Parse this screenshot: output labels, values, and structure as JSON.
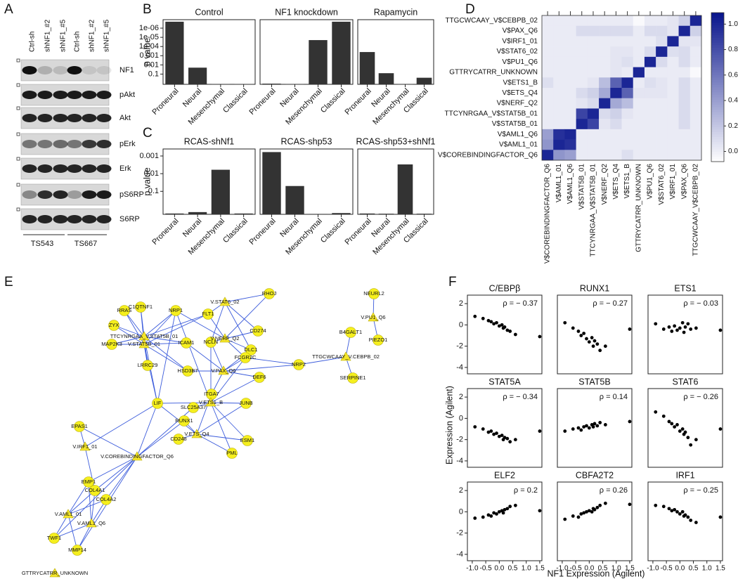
{
  "panel_letters": [
    "A",
    "B",
    "C",
    "D",
    "E",
    "F"
  ],
  "blot": {
    "lanes": [
      "Ctrl-sh",
      "shNF1_#2",
      "shNF1_#5",
      "Ctrl-sh",
      "shNF1_#2",
      "shNF1_#5"
    ],
    "proteins": [
      "NF1",
      "pAkt",
      "Akt",
      "pErk",
      "Erk",
      "pS6RP",
      "S6RP"
    ],
    "cell_lines": [
      "TS543",
      "TS667"
    ]
  },
  "chart_data": [
    {
      "type": "bar",
      "title": "Control",
      "ylabel": "p value",
      "log_scale": true,
      "color": "#333333",
      "categories": [
        "Proneural",
        "Neural",
        "Mesenchymal",
        "Classical"
      ],
      "values": [
        2e-07,
        0.02,
        1.2,
        1.2
      ],
      "ylim": [
        1.3,
        1.2e-07
      ],
      "yticks": [
        {
          "value": 1e-06,
          "label": "1e-06"
        },
        {
          "value": 1e-05,
          "label": "1e-05"
        },
        {
          "value": 0.0001,
          "label": "1e-04"
        },
        0.001,
        0.01,
        0.1
      ]
    },
    {
      "type": "bar",
      "title": "NF1 knockdown",
      "log_scale": true,
      "color": "#333333",
      "categories": [
        "Proneural",
        "Neural",
        "Mesenchymal",
        "Classical"
      ],
      "values": [
        1.1,
        1.25,
        2e-05,
        2e-07
      ],
      "ylim": [
        1.3,
        1.2e-07
      ]
    },
    {
      "type": "bar",
      "title": "Rapamycin",
      "log_scale": true,
      "color": "#333333",
      "categories": [
        "Proneural",
        "Neural",
        "Mesenchymal",
        "Classical"
      ],
      "values": [
        0.0004,
        0.08,
        1.25,
        0.25
      ],
      "ylim": [
        1.3,
        1.2e-07
      ]
    },
    {
      "type": "bar",
      "title": "RCAS-shNf1",
      "ylabel": "p value",
      "log_scale": true,
      "color": "#333333",
      "categories": [
        "Proneural",
        "Neural",
        "Mesenchymal",
        "Classical"
      ],
      "values": [
        1.8,
        1.5,
        0.006,
        1.8
      ],
      "ylim": [
        2,
        0.0004
      ],
      "yticks": [
        0.001,
        0.01,
        0.1
      ]
    },
    {
      "type": "bar",
      "title": "RCAS-shp53",
      "log_scale": true,
      "color": "#333333",
      "categories": [
        "Proneural",
        "Neural",
        "Mesenchymal",
        "Classical"
      ],
      "values": [
        0.0006,
        0.05,
        1.9,
        1.7
      ],
      "ylim": [
        2,
        0.0004
      ]
    },
    {
      "type": "bar",
      "title": "RCAS-shp53+shNf1",
      "log_scale": true,
      "color": "#333333",
      "categories": [
        "Proneural",
        "Neural",
        "Mesenchymal",
        "Classical"
      ],
      "values": [
        1.8,
        1.85,
        0.003,
        1.85
      ],
      "ylim": [
        2,
        0.0004
      ]
    },
    {
      "type": "heatmap",
      "color": "#08148c",
      "rows": [
        "TTGCWCAAY_V$CEBPB_02",
        "V$PAX_Q6",
        "V$IRF1_01",
        "V$STAT6_02",
        "V$PU1_Q6",
        "GTTRYCATRR_UNKNOWN",
        "V$ETS1_B",
        "V$ETS_Q4",
        "V$NERF_Q2",
        "TTCYNRGAA_V$STAT5B_01",
        "V$STAT5B_01",
        "V$AML1_Q6",
        "V$AML1_01",
        "V$COREBINDINGFACTOR_Q6"
      ],
      "columns": [
        "V$COREBINDINGFACTOR_Q6",
        "V$AML1_01",
        "V$AML1_Q6",
        "V$STAT5B_01",
        "TTCYNRGAA_V$STAT5B_01",
        "V$NERF_Q2",
        "V$ETS_Q4",
        "V$ETS1_B",
        "GTTRYCATRR_UNKNOWN",
        "V$PU1_Q6",
        "V$STAT6_02",
        "V$IRF1_01",
        "V$PAX_Q6",
        "TTGCWCAAY_V$CEBPB_02"
      ],
      "values": [
        [
          0.02,
          0.02,
          0.02,
          0.02,
          0.02,
          0.02,
          0.02,
          0.02,
          -0.05,
          0.02,
          0.02,
          0.05,
          0.15,
          1
        ],
        [
          0.02,
          0.02,
          0.02,
          0.1,
          0.1,
          0.1,
          0.1,
          0.1,
          0.02,
          0.1,
          0.1,
          0.05,
          1,
          0.15
        ],
        [
          0.02,
          0.02,
          0.02,
          0.02,
          0.02,
          0.02,
          0.02,
          0.02,
          0.02,
          0.02,
          0.08,
          1,
          0.05,
          0.05
        ],
        [
          0.02,
          0.02,
          0.02,
          0.02,
          0.02,
          0.02,
          0.05,
          0.05,
          0.02,
          0.1,
          1,
          0.08,
          0.1,
          0.02
        ],
        [
          0.02,
          0.02,
          0.02,
          0.02,
          0.02,
          0.02,
          0.05,
          0.08,
          0.02,
          1,
          0.1,
          0.02,
          0.1,
          0.02
        ],
        [
          0.02,
          0.02,
          0.02,
          0.02,
          0.02,
          0.02,
          0.05,
          0.02,
          1,
          0.02,
          0.02,
          0.02,
          0.02,
          -0.05
        ],
        [
          0.08,
          0.02,
          0.02,
          0.02,
          0.05,
          0.25,
          0.7,
          1,
          0.02,
          0.08,
          0.05,
          0.02,
          0.1,
          0.02
        ],
        [
          0.02,
          0.02,
          0.02,
          0.1,
          0.15,
          0.35,
          1,
          0.7,
          0.05,
          0.05,
          0.05,
          0.02,
          0.1,
          0.02
        ],
        [
          0.02,
          0.02,
          0.02,
          0.05,
          0.1,
          1,
          0.35,
          0.25,
          0.02,
          0.02,
          0.02,
          0.02,
          0.1,
          0.02
        ],
        [
          0.02,
          0.02,
          0.02,
          0.85,
          1,
          0.1,
          0.15,
          0.05,
          0.02,
          0.02,
          0.02,
          0.02,
          0.1,
          0.02
        ],
        [
          0.02,
          0.02,
          0.02,
          1,
          0.85,
          0.05,
          0.1,
          0.02,
          0.02,
          0.02,
          0.02,
          0.02,
          0.1,
          0.02
        ],
        [
          0.4,
          0.95,
          1,
          0.02,
          0.02,
          0.02,
          0.02,
          0.02,
          0.02,
          0.02,
          0.02,
          0.02,
          0.02,
          0.02
        ],
        [
          0.45,
          1,
          0.95,
          0.02,
          0.02,
          0.02,
          0.02,
          0.02,
          0.02,
          0.02,
          0.02,
          0.02,
          0.02,
          0.02
        ],
        [
          1,
          0.45,
          0.4,
          0.02,
          0.02,
          0.02,
          0.02,
          0.08,
          0.02,
          0.02,
          0.02,
          0.02,
          0.02,
          0.02
        ]
      ],
      "ylim": [
        -0.08,
        1.09
      ],
      "yticks": [
        {
          "value": 0,
          "label": "0.0"
        },
        0.2,
        0.4,
        0.6,
        0.8,
        {
          "value": 1,
          "label": "1.0"
        }
      ]
    },
    {
      "type": "scatter",
      "title": "C/EBPβ",
      "annotation": "ρ = − 0.37",
      "color": "#000000",
      "x": [
        -0.9,
        -0.6,
        -0.4,
        -0.3,
        -0.2,
        -0.1,
        0.0,
        0.1,
        0.15,
        0.2,
        0.3,
        0.4,
        0.6,
        1.5
      ],
      "y": [
        0.8,
        0.6,
        0.4,
        0.3,
        0.1,
        0.2,
        -0.1,
        0.0,
        -0.3,
        -0.2,
        -0.5,
        -0.6,
        -0.9,
        -1.1
      ],
      "xlim": [
        -1.18,
        1.58
      ],
      "ylim": [
        -4.6,
        2.8
      ],
      "yticks": [
        -4,
        -2,
        0,
        2
      ]
    },
    {
      "type": "scatter",
      "title": "RUNX1",
      "annotation": "ρ = − 0.27",
      "color": "#000000",
      "x": [
        -0.9,
        -0.6,
        -0.4,
        -0.3,
        -0.2,
        -0.1,
        0.0,
        0.1,
        0.15,
        0.2,
        0.3,
        0.4,
        0.6,
        1.5
      ],
      "y": [
        0.2,
        -0.3,
        -0.6,
        -1.0,
        -0.8,
        -1.3,
        -1.6,
        -1.2,
        -2.0,
        -1.5,
        -1.8,
        -2.4,
        -2.0,
        -0.4
      ],
      "xlim": [
        -1.18,
        1.58
      ],
      "ylim": [
        -4.6,
        2.8
      ]
    },
    {
      "type": "scatter",
      "title": "ETS1",
      "annotation": "ρ = − 0.03",
      "color": "#000000",
      "x": [
        -0.9,
        -0.6,
        -0.4,
        -0.3,
        -0.2,
        -0.1,
        0.0,
        0.1,
        0.15,
        0.2,
        0.3,
        0.4,
        0.6,
        1.5
      ],
      "y": [
        0.1,
        -0.4,
        -0.2,
        -0.6,
        -0.1,
        -0.5,
        -0.3,
        0.2,
        -0.7,
        -0.2,
        0.1,
        -0.4,
        -0.3,
        -0.5
      ],
      "xlim": [
        -1.18,
        1.58
      ],
      "ylim": [
        -4.6,
        2.8
      ]
    },
    {
      "type": "scatter",
      "title": "STAT5A",
      "annotation": "ρ = − 0.34",
      "color": "#000000",
      "x": [
        -0.9,
        -0.6,
        -0.4,
        -0.3,
        -0.2,
        -0.1,
        0.0,
        0.1,
        0.15,
        0.2,
        0.3,
        0.4,
        0.6,
        1.5
      ],
      "y": [
        -0.8,
        -1.0,
        -1.3,
        -1.2,
        -1.5,
        -1.4,
        -1.7,
        -1.6,
        -2.0,
        -1.8,
        -1.9,
        -2.2,
        -2.0,
        -1.2
      ],
      "xlim": [
        -1.18,
        1.58
      ],
      "ylim": [
        -4.6,
        2.8
      ],
      "yticks": [
        -4,
        -2,
        0,
        2
      ]
    },
    {
      "type": "scatter",
      "title": "STAT5B",
      "annotation": "ρ = 0.14",
      "color": "#000000",
      "x": [
        -0.9,
        -0.6,
        -0.4,
        -0.3,
        -0.2,
        -0.1,
        0.0,
        0.1,
        0.15,
        0.2,
        0.3,
        0.4,
        0.6,
        1.5
      ],
      "y": [
        -1.2,
        -1.0,
        -0.9,
        -1.1,
        -0.8,
        -0.7,
        -0.9,
        -0.6,
        -0.8,
        -0.5,
        -0.7,
        -0.4,
        -0.6,
        -0.3
      ],
      "xlim": [
        -1.18,
        1.58
      ],
      "ylim": [
        -4.6,
        2.8
      ]
    },
    {
      "type": "scatter",
      "title": "STAT6",
      "annotation": "ρ = − 0.26",
      "color": "#000000",
      "x": [
        -0.9,
        -0.6,
        -0.4,
        -0.3,
        -0.2,
        -0.1,
        0.0,
        0.1,
        0.15,
        0.2,
        0.3,
        0.4,
        0.6,
        1.5
      ],
      "y": [
        0.6,
        0.2,
        -0.3,
        -0.5,
        -0.8,
        -0.6,
        -1.2,
        -1.0,
        -1.5,
        -1.3,
        -1.8,
        -2.5,
        -2.0,
        -1.0
      ],
      "xlim": [
        -1.18,
        1.58
      ],
      "ylim": [
        -4.6,
        2.8
      ]
    },
    {
      "type": "scatter",
      "title": "ELF2",
      "annotation": "ρ = 0.2",
      "color": "#000000",
      "x": [
        -0.9,
        -0.6,
        -0.4,
        -0.3,
        -0.2,
        -0.1,
        0.0,
        0.1,
        0.15,
        0.2,
        0.3,
        0.4,
        0.6,
        1.5
      ],
      "y": [
        -0.6,
        -0.5,
        -0.3,
        -0.4,
        -0.1,
        -0.2,
        0.0,
        0.1,
        -0.1,
        0.2,
        0.3,
        0.5,
        0.6,
        0.1
      ],
      "xlim": [
        -1.18,
        1.58
      ],
      "ylim": [
        -4.6,
        2.8
      ],
      "yticks": [
        -4,
        -2,
        0,
        2
      ],
      "xticks": [
        {
          "value": -1,
          "label": "-1.0"
        },
        -0.5,
        {
          "value": 0,
          "label": "0.0"
        },
        0.5,
        {
          "value": 1,
          "label": "1.0"
        },
        1.5
      ]
    },
    {
      "type": "scatter",
      "title": "CBFA2T2",
      "annotation": "ρ = 0.26",
      "color": "#000000",
      "x": [
        -0.9,
        -0.6,
        -0.4,
        -0.3,
        -0.2,
        -0.1,
        0.0,
        0.1,
        0.15,
        0.2,
        0.3,
        0.4,
        0.6,
        1.5
      ],
      "y": [
        -0.7,
        -0.4,
        -0.5,
        -0.2,
        -0.1,
        0.0,
        0.1,
        0.0,
        0.3,
        0.2,
        0.4,
        0.6,
        0.8,
        0.7
      ],
      "xlim": [
        -1.18,
        1.58
      ],
      "ylim": [
        -4.6,
        2.8
      ],
      "xticks": [
        {
          "value": -1,
          "label": "-1.0"
        },
        -0.5,
        {
          "value": 0,
          "label": "0.0"
        },
        0.5,
        {
          "value": 1,
          "label": "1.0"
        },
        1.5
      ]
    },
    {
      "type": "scatter",
      "title": "IRF1",
      "annotation": "ρ = − 0.25",
      "color": "#000000",
      "x": [
        -0.9,
        -0.6,
        -0.4,
        -0.3,
        -0.2,
        -0.1,
        0.0,
        0.1,
        0.15,
        0.2,
        0.3,
        0.4,
        0.6,
        1.5
      ],
      "y": [
        0.6,
        0.5,
        0.3,
        0.1,
        0.2,
        0.0,
        -0.2,
        0.0,
        -0.4,
        -0.3,
        -0.5,
        -0.8,
        -1.0,
        -0.5
      ],
      "xlim": [
        -1.18,
        1.58
      ],
      "ylim": [
        -4.6,
        2.8
      ],
      "xticks": [
        {
          "value": -1,
          "label": "-1.0"
        },
        -0.5,
        {
          "value": 0,
          "label": "0.0"
        },
        0.5,
        {
          "value": 1,
          "label": "1.0"
        },
        1.5
      ]
    }
  ],
  "scatter_axes": {
    "xlabel": "NF1 Expression (Agilent)",
    "ylabel": "Expression (Agilent)"
  },
  "network": {
    "nodes": [
      "RHOJ",
      "NEURL2",
      "V.STAT6_02",
      "V.PU1_Q6",
      "FLT1",
      "NRP1",
      "C1QTNF1",
      "RRAS",
      "ZYX",
      "MAP2K3",
      "TTCYNRGAA_V.STAT5B_01",
      "V.STAT5B_01",
      "ICAM1",
      "NCLN",
      "V.NERF_Q2",
      "CD274",
      "B4GALT1",
      "PIEZO1",
      "DLC1",
      "FCGR2C",
      "TTGCWCAAY_V.CEBPB_02",
      "LRRC29",
      "HSD3B7",
      "V.PAX_Q6",
      "NRP2",
      "DEF6",
      "SERPINE1",
      "ITGA7",
      "V.ETS1_B",
      "JUNB",
      "LIF",
      "SLC25A37",
      "RUNX1",
      "V.ETS_Q4",
      "EPAS1",
      "CD248",
      "ESM1",
      "PML",
      "V.IRF1_01",
      "V.COREBINDINGFACTOR_Q6",
      "EMP1",
      "COL4A1",
      "COL4A2",
      "V.AML1_01",
      "V.AML1_Q6",
      "TWF1",
      "MMP14",
      "GTTRYCATRR_UNKNOWN"
    ]
  }
}
